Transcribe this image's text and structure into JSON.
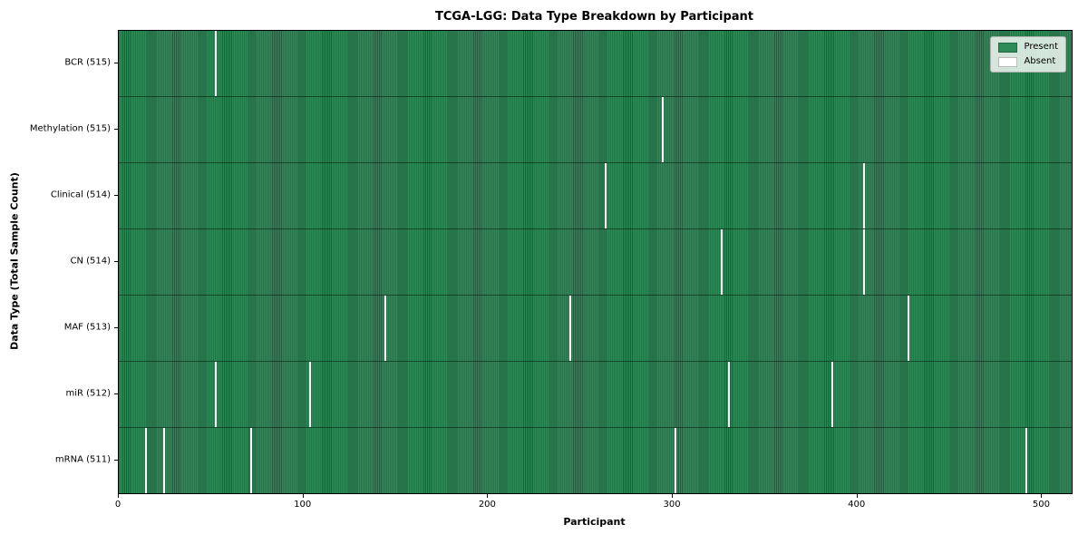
{
  "title": "TCGA-LGG: Data Type Breakdown by Participant",
  "axes": {
    "xlabel": "Participant",
    "ylabel": "Data Type (Total Sample Count)"
  },
  "legend": {
    "present_label": "Present",
    "absent_label": "Absent"
  },
  "colors": {
    "present": "#2e8b57",
    "present_edge": "#215c3c",
    "absent": "#ffffff",
    "row_divider": "rgba(5,25,15,0.55)"
  },
  "chart_data": {
    "type": "heatmap",
    "title": "TCGA-LGG: Data Type Breakdown by Participant",
    "xlabel": "Participant",
    "ylabel": "Data Type (Total Sample Count)",
    "legend": [
      "Present",
      "Absent"
    ],
    "legend_position": "upper right",
    "grid": false,
    "n_participants": 516,
    "x_ticks": [
      0,
      100,
      200,
      300,
      400,
      500
    ],
    "xlim": [
      0,
      516
    ],
    "rows": [
      {
        "label": "BCR (515)",
        "data_type": "BCR",
        "present_count": 515,
        "absent_participants": [
          52
        ]
      },
      {
        "label": "Methylation (515)",
        "data_type": "Methylation",
        "present_count": 515,
        "absent_participants": [
          294
        ]
      },
      {
        "label": "Clinical (514)",
        "data_type": "Clinical",
        "present_count": 514,
        "absent_participants": [
          263,
          403
        ]
      },
      {
        "label": "CN (514)",
        "data_type": "CN",
        "present_count": 514,
        "absent_participants": [
          326,
          403
        ]
      },
      {
        "label": "MAF (513)",
        "data_type": "MAF",
        "present_count": 513,
        "absent_participants": [
          144,
          244,
          427
        ]
      },
      {
        "label": "miR (512)",
        "data_type": "miR",
        "present_count": 512,
        "absent_participants": [
          52,
          103,
          330,
          386
        ]
      },
      {
        "label": "mRNA (511)",
        "data_type": "mRNA",
        "present_count": 511,
        "absent_participants": [
          14,
          24,
          71,
          301,
          491
        ]
      }
    ]
  }
}
